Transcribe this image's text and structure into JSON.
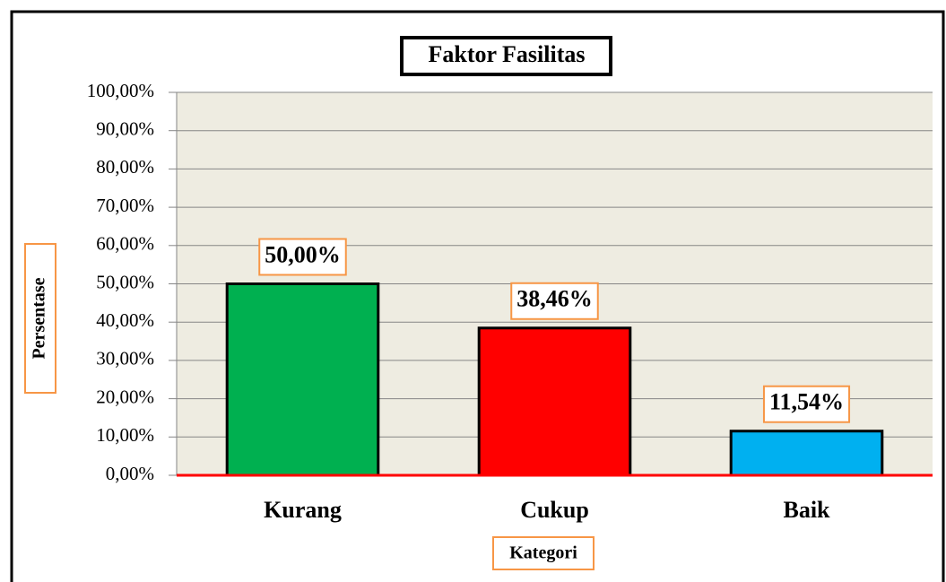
{
  "chart_data": {
    "type": "bar",
    "title": "Faktor Fasilitas",
    "x_label": "Kategori",
    "y_label": "Persentase",
    "categories": [
      "Kurang",
      "Cukup",
      "Baik"
    ],
    "values": [
      50,
      38.46,
      11.54
    ],
    "value_labels": [
      "50,00%",
      "38,46%",
      "11,54%"
    ],
    "colors": [
      "#00B050",
      "#FF0000",
      "#00B0F0"
    ],
    "ylim": [
      0,
      100
    ],
    "yticks": [
      {
        "value": 0,
        "label": "0,00%"
      },
      {
        "value": 10,
        "label": "10,00%"
      },
      {
        "value": 20,
        "label": "20,00%"
      },
      {
        "value": 30,
        "label": "30,00%"
      },
      {
        "value": 40,
        "label": "40,00%"
      },
      {
        "value": 50,
        "label": "50,00%"
      },
      {
        "value": 60,
        "label": "60,00%"
      },
      {
        "value": 70,
        "label": "70,00%"
      },
      {
        "value": 80,
        "label": "80,00%"
      },
      {
        "value": 90,
        "label": "90,00%"
      },
      {
        "value": 100,
        "label": "100,00%"
      }
    ],
    "grid": true
  }
}
